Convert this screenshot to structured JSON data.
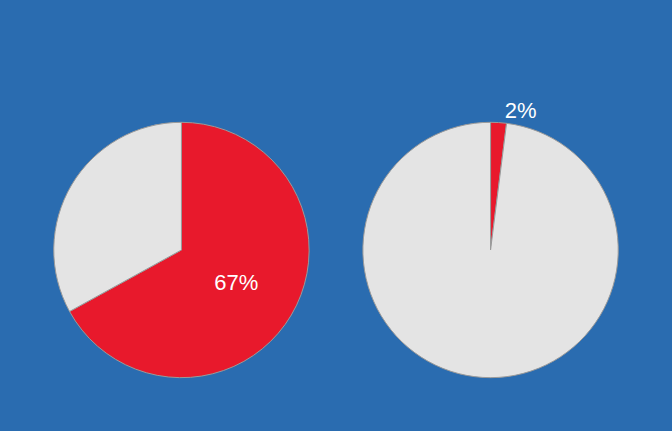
{
  "chart_data": [
    {
      "type": "pie",
      "values": [
        67,
        33
      ],
      "value_labels": [
        "67%",
        null
      ],
      "colors": [
        "#e8192c",
        "#e4e4e4"
      ],
      "data_labels": true
    },
    {
      "type": "pie",
      "values": [
        2,
        98
      ],
      "value_labels": [
        "2%",
        null
      ],
      "colors": [
        "#e8192c",
        "#e4e4e4"
      ],
      "data_labels": true
    }
  ]
}
